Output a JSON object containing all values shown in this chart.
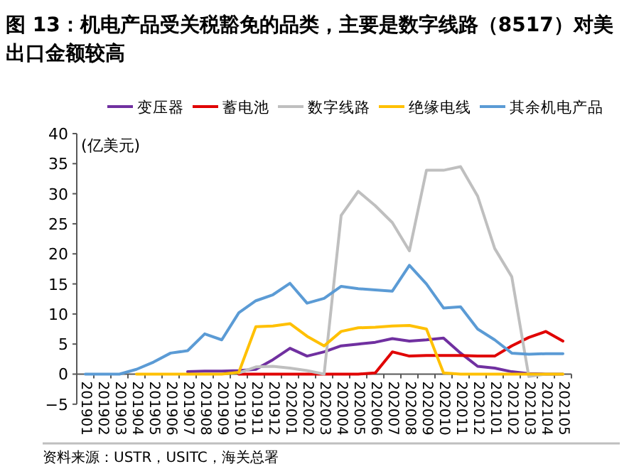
{
  "chart_data": {
    "type": "line",
    "title": "图 13：机电产品受关税豁免的品类，主要是数字线路（8517）对美出口金额较高",
    "ylabel": "(亿美元)",
    "annotations": [
      "资料来源：USTR，USITC，海关总署"
    ],
    "categories": [
      "201901",
      "201902",
      "201903",
      "201904",
      "201905",
      "201906",
      "201907",
      "201908",
      "201909",
      "201910",
      "201911",
      "201912",
      "202001",
      "202002",
      "202003",
      "202004",
      "202005",
      "202006",
      "202007",
      "202008",
      "202009",
      "202010",
      "202011",
      "202012",
      "202101",
      "202102",
      "202103",
      "202104",
      "202105"
    ],
    "series": [
      {
        "name": "变压器",
        "color": "#7030a0",
        "values": [
          null,
          null,
          null,
          null,
          null,
          null,
          0.4,
          0.5,
          0.5,
          0.6,
          0.8,
          2.4,
          4.3,
          3.0,
          3.7,
          4.7,
          5.0,
          5.3,
          5.9,
          5.5,
          5.7,
          6.0,
          3.5,
          1.3,
          1.0,
          0.4,
          0.1,
          0,
          0
        ]
      },
      {
        "name": "蓄电池",
        "color": "#e00000",
        "values": [
          null,
          null,
          null,
          null,
          null,
          null,
          null,
          null,
          null,
          0,
          0,
          0,
          0,
          0,
          0,
          0,
          0,
          0.2,
          3.7,
          3.0,
          3.1,
          3.1,
          3.1,
          3.0,
          3.0,
          4.7,
          6.1,
          7.1,
          5.5
        ]
      },
      {
        "name": "数字线路",
        "color": "#bfbfbf",
        "values": [
          null,
          null,
          null,
          null,
          null,
          null,
          null,
          null,
          null,
          0.2,
          1.2,
          1.3,
          1.0,
          0.6,
          0,
          26.4,
          30.4,
          28.0,
          25.2,
          20.5,
          33.9,
          33.9,
          34.5,
          29.6,
          20.9,
          16.2,
          -0.4,
          0,
          0
        ]
      },
      {
        "name": "绝缘电线",
        "color": "#ffc000",
        "values": [
          null,
          null,
          null,
          0,
          0,
          0,
          0,
          0,
          0,
          0.3,
          7.9,
          8.0,
          8.4,
          6.3,
          4.7,
          7.1,
          7.7,
          7.8,
          8.0,
          8.1,
          7.5,
          0.2,
          0,
          0,
          0,
          0,
          0,
          0,
          0
        ]
      },
      {
        "name": "其余机电产品",
        "color": "#5b9bd5",
        "values": [
          0,
          0,
          0,
          0.8,
          2.0,
          3.5,
          3.9,
          6.7,
          5.7,
          10.2,
          12.2,
          13.2,
          15.1,
          11.8,
          12.6,
          14.6,
          14.2,
          14.0,
          13.8,
          18.1,
          15.0,
          11.0,
          11.2,
          7.5,
          5.7,
          3.5,
          3.3,
          3.4,
          3.4
        ]
      }
    ],
    "ylim": [
      -5,
      40
    ],
    "yticks": [
      -5,
      0,
      5,
      10,
      15,
      20,
      25,
      30,
      35,
      40
    ],
    "legend": "top",
    "grid": false
  }
}
